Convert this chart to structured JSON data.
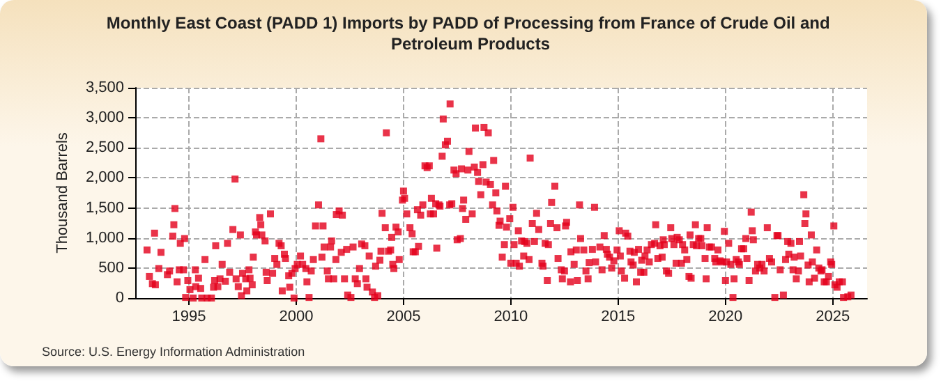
{
  "chart_data": {
    "type": "scatter",
    "title": "Monthly East Coast (PADD 1) Imports by PADD of Processing from France of Crude Oil and Petroleum Products",
    "ylabel": "Thousand Barrels",
    "annotations": [
      "Source: U.S. Energy Information Administration"
    ],
    "marker": "square",
    "grid": true,
    "xlim": [
      1992.5,
      2026.6
    ],
    "xticks": [
      1995,
      2000,
      2005,
      2010,
      2015,
      2020,
      2025
    ],
    "ylim": [
      0,
      3500
    ],
    "yticks": [
      {
        "value": 0,
        "label": "0"
      },
      {
        "value": 500,
        "label": "500"
      },
      {
        "value": 1000,
        "label": "1,000"
      },
      {
        "value": 1500,
        "label": "1,500"
      },
      {
        "value": 2000,
        "label": "2,000"
      },
      {
        "value": 2500,
        "label": "2,500"
      },
      {
        "value": 3000,
        "label": "3,000"
      },
      {
        "value": 3500,
        "label": "3,500"
      }
    ],
    "series": [
      {
        "color": "#e3001b",
        "x": [
          1993.05,
          1993.16,
          1993.3,
          1993.4,
          1993.44,
          1993.6,
          1993.7,
          1994.0,
          1994.1,
          1994.25,
          1994.3,
          1994.35,
          1994.45,
          1994.55,
          1994.6,
          1994.75,
          1994.8,
          1994.85,
          1994.95,
          1995.05,
          1995.2,
          1995.3,
          1995.32,
          1995.45,
          1995.55,
          1995.6,
          1995.75,
          1995.85,
          1996.05,
          1996.15,
          1996.2,
          1996.25,
          1996.35,
          1996.45,
          1996.55,
          1996.7,
          1996.8,
          1996.9,
          1997.05,
          1997.15,
          1997.2,
          1997.3,
          1997.4,
          1997.45,
          1997.5,
          1997.65,
          1997.7,
          1997.8,
          1997.85,
          1997.95,
          1998.0,
          1998.1,
          1998.15,
          1998.3,
          1998.35,
          1998.4,
          1998.55,
          1998.6,
          1998.65,
          1998.8,
          1998.9,
          1999.0,
          1999.1,
          1999.2,
          1999.3,
          1999.35,
          1999.45,
          1999.5,
          1999.65,
          1999.7,
          1999.8,
          1999.9,
          1999.95,
          2000.05,
          2000.2,
          2000.3,
          2000.45,
          2000.5,
          2000.6,
          2000.7,
          2000.8,
          2000.9,
          2001.04,
          2001.15,
          2001.2,
          2001.25,
          2001.3,
          2001.45,
          2001.5,
          2001.6,
          2001.65,
          2001.75,
          2001.85,
          2001.87,
          2002.0,
          2002.1,
          2002.15,
          2002.25,
          2002.35,
          2002.4,
          2002.55,
          2002.65,
          2002.75,
          2002.85,
          2002.95,
          2003.05,
          2003.2,
          2003.25,
          2003.3,
          2003.4,
          2003.55,
          2003.65,
          2003.7,
          2003.8,
          2003.9,
          2003.95,
          2004.0,
          2004.15,
          2004.2,
          2004.3,
          2004.4,
          2004.45,
          2004.5,
          2004.55,
          2004.65,
          2004.75,
          2004.8,
          2004.95,
          2005.0,
          2005.05,
          2005.15,
          2005.3,
          2005.4,
          2005.45,
          2005.55,
          2005.65,
          2005.7,
          2005.8,
          2005.9,
          2006.0,
          2006.1,
          2006.2,
          2006.25,
          2006.3,
          2006.4,
          2006.5,
          2006.55,
          2006.65,
          2006.7,
          2006.8,
          2006.85,
          2006.95,
          2007.05,
          2007.15,
          2007.17,
          2007.25,
          2007.35,
          2007.45,
          2007.5,
          2007.65,
          2007.7,
          2007.75,
          2007.8,
          2007.9,
          2008.0,
          2008.05,
          2008.2,
          2008.3,
          2008.35,
          2008.45,
          2008.5,
          2008.6,
          2008.7,
          2008.75,
          2008.85,
          2008.95,
          2009.05,
          2009.15,
          2009.2,
          2009.3,
          2009.35,
          2009.45,
          2009.5,
          2009.6,
          2009.7,
          2009.75,
          2009.8,
          2009.95,
          2010.0,
          2010.1,
          2010.15,
          2010.25,
          2010.35,
          2010.4,
          2010.5,
          2010.6,
          2010.65,
          2010.75,
          2010.85,
          2010.9,
          2011.0,
          2011.1,
          2011.2,
          2011.3,
          2011.45,
          2011.5,
          2011.6,
          2011.7,
          2011.75,
          2011.85,
          2011.9,
          2012.05,
          2012.15,
          2012.2,
          2012.35,
          2012.4,
          2012.5,
          2012.55,
          2012.6,
          2012.78,
          2012.8,
          2012.95,
          2013.05,
          2013.1,
          2013.2,
          2013.25,
          2013.4,
          2013.5,
          2013.6,
          2013.65,
          2013.8,
          2013.9,
          2013.95,
          2014.15,
          2014.25,
          2014.35,
          2014.45,
          2014.5,
          2014.6,
          2014.7,
          2014.8,
          2014.95,
          2015.05,
          2015.1,
          2015.15,
          2015.3,
          2015.35,
          2015.45,
          2015.55,
          2015.6,
          2015.7,
          2015.75,
          2015.85,
          2015.95,
          2016.05,
          2016.1,
          2016.2,
          2016.25,
          2016.35,
          2016.45,
          2016.55,
          2016.7,
          2016.75,
          2016.85,
          2016.95,
          2017.05,
          2017.1,
          2017.15,
          2017.25,
          2017.35,
          2017.45,
          2017.5,
          2017.6,
          2017.7,
          2017.75,
          2017.85,
          2017.95,
          2018.0,
          2018.1,
          2018.2,
          2018.3,
          2018.35,
          2018.4,
          2018.5,
          2018.6,
          2018.65,
          2018.75,
          2018.85,
          2018.9,
          2019.05,
          2019.1,
          2019.15,
          2019.25,
          2019.35,
          2019.5,
          2019.55,
          2019.65,
          2019.75,
          2019.85,
          2019.95,
          2020.0,
          2020.05,
          2020.15,
          2020.25,
          2020.35,
          2020.4,
          2020.5,
          2020.6,
          2020.65,
          2020.75,
          2020.85,
          2020.95,
          2021.0,
          2021.1,
          2021.2,
          2021.25,
          2021.3,
          2021.4,
          2021.5,
          2021.6,
          2021.7,
          2021.8,
          2021.95,
          2022.05,
          2022.15,
          2022.3,
          2022.4,
          2022.45,
          2022.55,
          2022.7,
          2022.8,
          2022.9,
          2022.95,
          2023.05,
          2023.15,
          2023.2,
          2023.3,
          2023.4,
          2023.45,
          2023.5,
          2023.65,
          2023.7,
          2023.75,
          2023.85,
          2023.9,
          2024.0,
          2024.05,
          2024.15,
          2024.25,
          2024.35,
          2024.45,
          2024.5,
          2024.6,
          2024.7,
          2024.8,
          2024.9,
          2024.95,
          2025.05,
          2025.1,
          2025.2,
          2025.3,
          2025.45,
          2025.5,
          2025.7,
          2025.85
        ],
        "values": [
          800,
          360,
          240,
          1080,
          220,
          490,
          760,
          390,
          450,
          1030,
          1220,
          1490,
          270,
          470,
          910,
          470,
          990,
          10,
          290,
          140,
          0,
          470,
          190,
          330,
          160,
          0,
          640,
          0,
          0,
          180,
          290,
          870,
          190,
          320,
          560,
          280,
          910,
          430,
          1140,
          1980,
          320,
          190,
          1050,
          40,
          410,
          320,
          120,
          470,
          330,
          220,
          680,
          1100,
          1050,
          1340,
          1220,
          1050,
          950,
          430,
          290,
          1400,
          410,
          660,
          560,
          910,
          870,
          120,
          730,
          660,
          370,
          180,
          410,
          0,
          490,
          560,
          700,
          560,
          490,
          270,
          10,
          450,
          640,
          1200,
          1550,
          2650,
          680,
          1200,
          850,
          450,
          320,
          850,
          950,
          320,
          640,
          1390,
          1450,
          760,
          1380,
          320,
          810,
          50,
          10,
          850,
          320,
          240,
          490,
          900,
          870,
          320,
          180,
          700,
          100,
          10,
          530,
          40,
          630,
          780,
          1410,
          1170,
          2750,
          780,
          800,
          1010,
          560,
          490,
          1180,
          1100,
          640,
          1630,
          1780,
          1660,
          1400,
          1170,
          1070,
          770,
          770,
          1470,
          860,
          1380,
          1550,
          2200,
          2170,
          2200,
          1400,
          1660,
          1400,
          1570,
          830,
          1550,
          1530,
          2360,
          2980,
          2550,
          2610,
          1550,
          3230,
          1570,
          2130,
          2070,
          970,
          990,
          2150,
          1490,
          1630,
          1310,
          2130,
          2440,
          1400,
          2180,
          2830,
          2090,
          1940,
          1720,
          2220,
          2840,
          1930,
          2750,
          1890,
          1550,
          2290,
          1750,
          1450,
          1210,
          1280,
          680,
          890,
          1860,
          1180,
          1320,
          580,
          1510,
          890,
          580,
          1120,
          530,
          950,
          700,
          940,
          910,
          640,
          2330,
          1240,
          940,
          1410,
          1140,
          580,
          530,
          910,
          290,
          890,
          1240,
          1590,
          1860,
          1170,
          660,
          470,
          320,
          450,
          1200,
          1260,
          270,
          770,
          560,
          800,
          290,
          1550,
          990,
          800,
          450,
          320,
          590,
          810,
          1510,
          600,
          850,
          470,
          1040,
          810,
          730,
          680,
          500,
          620,
          800,
          1120,
          700,
          450,
          330,
          1080,
          1030,
          780,
          600,
          550,
          760,
          270,
          810,
          430,
          630,
          430,
          700,
          800,
          600,
          890,
          910,
          1220,
          660,
          870,
          680,
          970,
          890,
          450,
          410,
          1170,
          990,
          890,
          580,
          1010,
          970,
          580,
          890,
          800,
          640,
          360,
          1050,
          330,
          890,
          1220,
          870,
          990,
          990,
          870,
          660,
          320,
          1170,
          850,
          850,
          660,
          600,
          800,
          620,
          600,
          1110,
          290,
          600,
          910,
          560,
          10,
          320,
          640,
          600,
          560,
          820,
          820,
          990,
          660,
          290,
          1430,
          1120,
          970,
          450,
          560,
          500,
          560,
          450,
          1170,
          660,
          600,
          10,
          1040,
          1040,
          470,
          50,
          640,
          940,
          730,
          910,
          470,
          680,
          320,
          450,
          940,
          700,
          1720,
          1240,
          1400,
          550,
          270,
          1050,
          600,
          330,
          800,
          500,
          450,
          470,
          270,
          270,
          360,
          600,
          560,
          1200,
          220,
          180,
          270,
          270,
          10,
          20,
          50
        ]
      }
    ]
  }
}
